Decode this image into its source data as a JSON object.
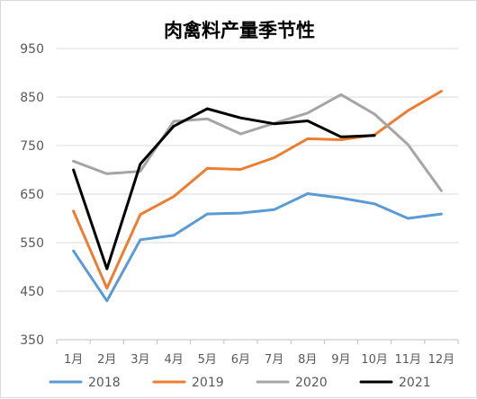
{
  "chart_data": {
    "type": "line",
    "title": "肉禽料产量季节性",
    "xlabel": "",
    "ylabel": "",
    "categories": [
      "1月",
      "2月",
      "3月",
      "4月",
      "5月",
      "6月",
      "7月",
      "8月",
      "9月",
      "10月",
      "11月",
      "12月"
    ],
    "ylim": [
      350,
      950
    ],
    "yticks": [
      "350",
      "450",
      "550",
      "650",
      "750",
      "850",
      "950"
    ],
    "grid": true,
    "legend": "bottom",
    "series": [
      {
        "name": "2018",
        "color": "#5b9bd5",
        "values": [
          533,
          430,
          556,
          565,
          609,
          611,
          618,
          651,
          642,
          630,
          600,
          609
        ]
      },
      {
        "name": "2019",
        "color": "#ed7d31",
        "values": [
          615,
          456,
          608,
          645,
          703,
          701,
          725,
          764,
          762,
          772,
          822,
          862
        ]
      },
      {
        "name": "2020",
        "color": "#a5a5a5",
        "values": [
          718,
          692,
          697,
          800,
          805,
          774,
          796,
          817,
          855,
          815,
          752,
          657
        ]
      },
      {
        "name": "2021",
        "color": "#000000",
        "values": [
          700,
          496,
          712,
          790,
          826,
          807,
          795,
          801,
          768,
          771,
          null,
          null
        ]
      }
    ]
  }
}
